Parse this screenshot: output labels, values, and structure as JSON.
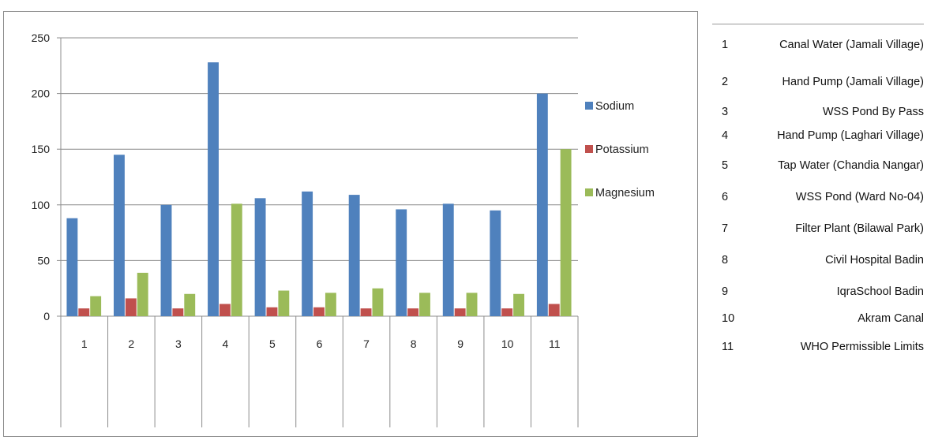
{
  "chart_data": {
    "type": "bar",
    "title": "",
    "xlabel": "",
    "ylabel": "",
    "categories": [
      "1",
      "2",
      "3",
      "4",
      "5",
      "6",
      "7",
      "8",
      "9",
      "10",
      "11"
    ],
    "series": [
      {
        "name": "Sodium",
        "color": "#4f81bd",
        "values": [
          88,
          145,
          100,
          228,
          106,
          112,
          109,
          96,
          101,
          95,
          200
        ]
      },
      {
        "name": "Potassium",
        "color": "#c0504d",
        "values": [
          7,
          16,
          7,
          11,
          8,
          8,
          7,
          7,
          7,
          7,
          11
        ]
      },
      {
        "name": "Magnesium",
        "color": "#9bbb59",
        "values": [
          18,
          39,
          20,
          101,
          23,
          21,
          25,
          21,
          21,
          20,
          150
        ]
      }
    ],
    "ylim": [
      0,
      250
    ],
    "yticks": [
      0,
      50,
      100,
      150,
      200,
      250
    ],
    "grid": true,
    "legend_position": "right"
  },
  "sample_table": [
    {
      "num": "1",
      "desc": "Canal Water (Jamali Village)"
    },
    {
      "num": "2",
      "desc": "Hand Pump (Jamali Village)"
    },
    {
      "num": "3",
      "desc": "WSS Pond By Pass"
    },
    {
      "num": "4",
      "desc": "Hand Pump (Laghari Village)"
    },
    {
      "num": "5",
      "desc": "Tap Water (Chandia Nangar)"
    },
    {
      "num": "6",
      "desc": "WSS Pond (Ward No-04)"
    },
    {
      "num": "7",
      "desc": "Filter Plant (Bilawal Park)"
    },
    {
      "num": "8",
      "desc": "Civil Hospital Badin"
    },
    {
      "num": "9",
      "desc": "IqraSchool Badin"
    },
    {
      "num": "10",
      "desc": "Akram Canal"
    },
    {
      "num": "11",
      "desc": "WHO Permissible Limits"
    }
  ]
}
